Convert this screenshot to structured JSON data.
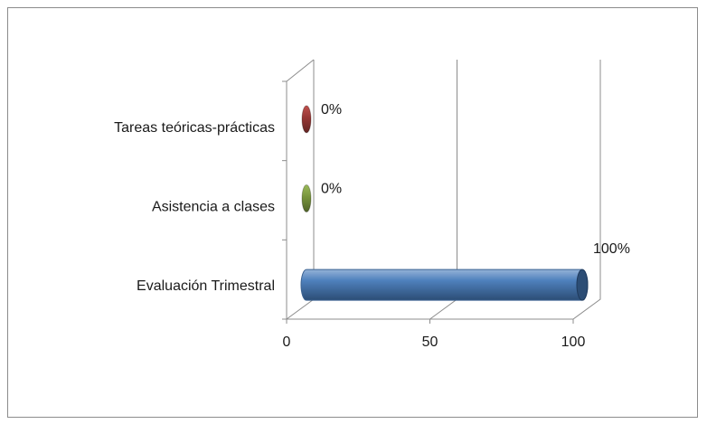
{
  "chart_data": {
    "type": "bar",
    "orientation": "horizontal",
    "style": "3d-cylinder",
    "categories": [
      "Tareas teóricas-prácticas",
      "Asistencia a clases",
      "Evaluación Trimestral"
    ],
    "values": [
      0,
      0,
      100
    ],
    "data_labels": [
      "0%",
      "0%",
      "100%"
    ],
    "colors": [
      "#953735",
      "#77933c",
      "#4f81bd"
    ],
    "xlim": [
      0,
      100
    ],
    "x_ticks": [
      0,
      50,
      100
    ],
    "tick_labels": [
      "0",
      "50",
      "100"
    ],
    "grid": true,
    "legend": "none",
    "title": "",
    "xlabel": "",
    "ylabel": ""
  }
}
